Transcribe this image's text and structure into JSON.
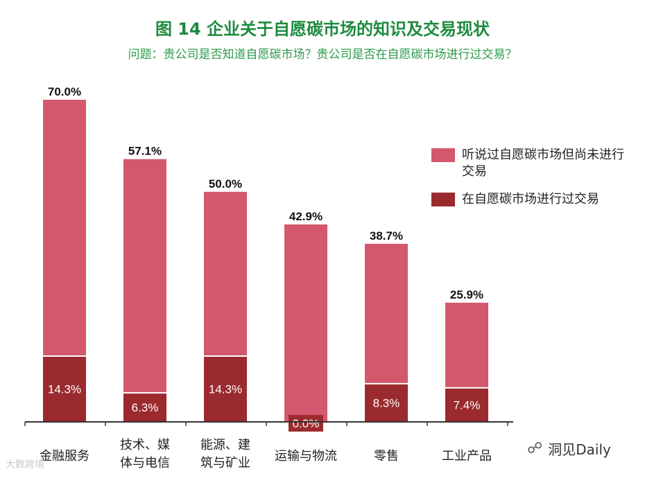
{
  "header": {
    "title": "图 14  企业关于自愿碳市场的知识及交易现状",
    "subtitle": "问题：贵公司是否知道自愿碳市场？贵公司是否在自愿碳市场进行过交易？"
  },
  "colors": {
    "title": "#1d8a3e",
    "heard": "#d4586d",
    "traded": "#9b2a2e"
  },
  "chart_data": {
    "type": "bar",
    "stacked": true,
    "categories": [
      "金融服务",
      "技术、媒体与电信",
      "能源、建筑与矿业",
      "运输与物流",
      "零售",
      "工业产品"
    ],
    "category_lines": [
      [
        "金融服务"
      ],
      [
        "技术、媒",
        "体与电信"
      ],
      [
        "能源、建",
        "筑与矿业"
      ],
      [
        "运输与物流"
      ],
      [
        "零售"
      ],
      [
        "工业产品"
      ]
    ],
    "totals": [
      70.0,
      57.1,
      50.0,
      42.9,
      38.7,
      25.9
    ],
    "total_labels": [
      "70.0%",
      "57.1%",
      "50.0%",
      "42.9%",
      "38.7%",
      "25.9%"
    ],
    "series": [
      {
        "name": "在自愿碳市场进行过交易",
        "values": [
          14.3,
          6.3,
          14.3,
          0.0,
          8.3,
          7.4
        ],
        "labels": [
          "14.3%",
          "6.3%",
          "14.3%",
          "0.0%",
          "8.3%",
          "7.4%"
        ]
      },
      {
        "name": "听说过自愿碳市场但尚未进行交易",
        "values": [
          55.7,
          50.8,
          35.7,
          42.9,
          30.4,
          18.5
        ]
      }
    ],
    "ylim": [
      0,
      70
    ]
  },
  "legend": {
    "items": [
      {
        "label": "听说过自愿碳市场但尚未进行交易",
        "color_key": "heard"
      },
      {
        "label": "在自愿碳市场进行过交易",
        "color_key": "traded"
      }
    ]
  },
  "watermarks": {
    "left": "大数跨境",
    "right": "洞见Daily"
  }
}
